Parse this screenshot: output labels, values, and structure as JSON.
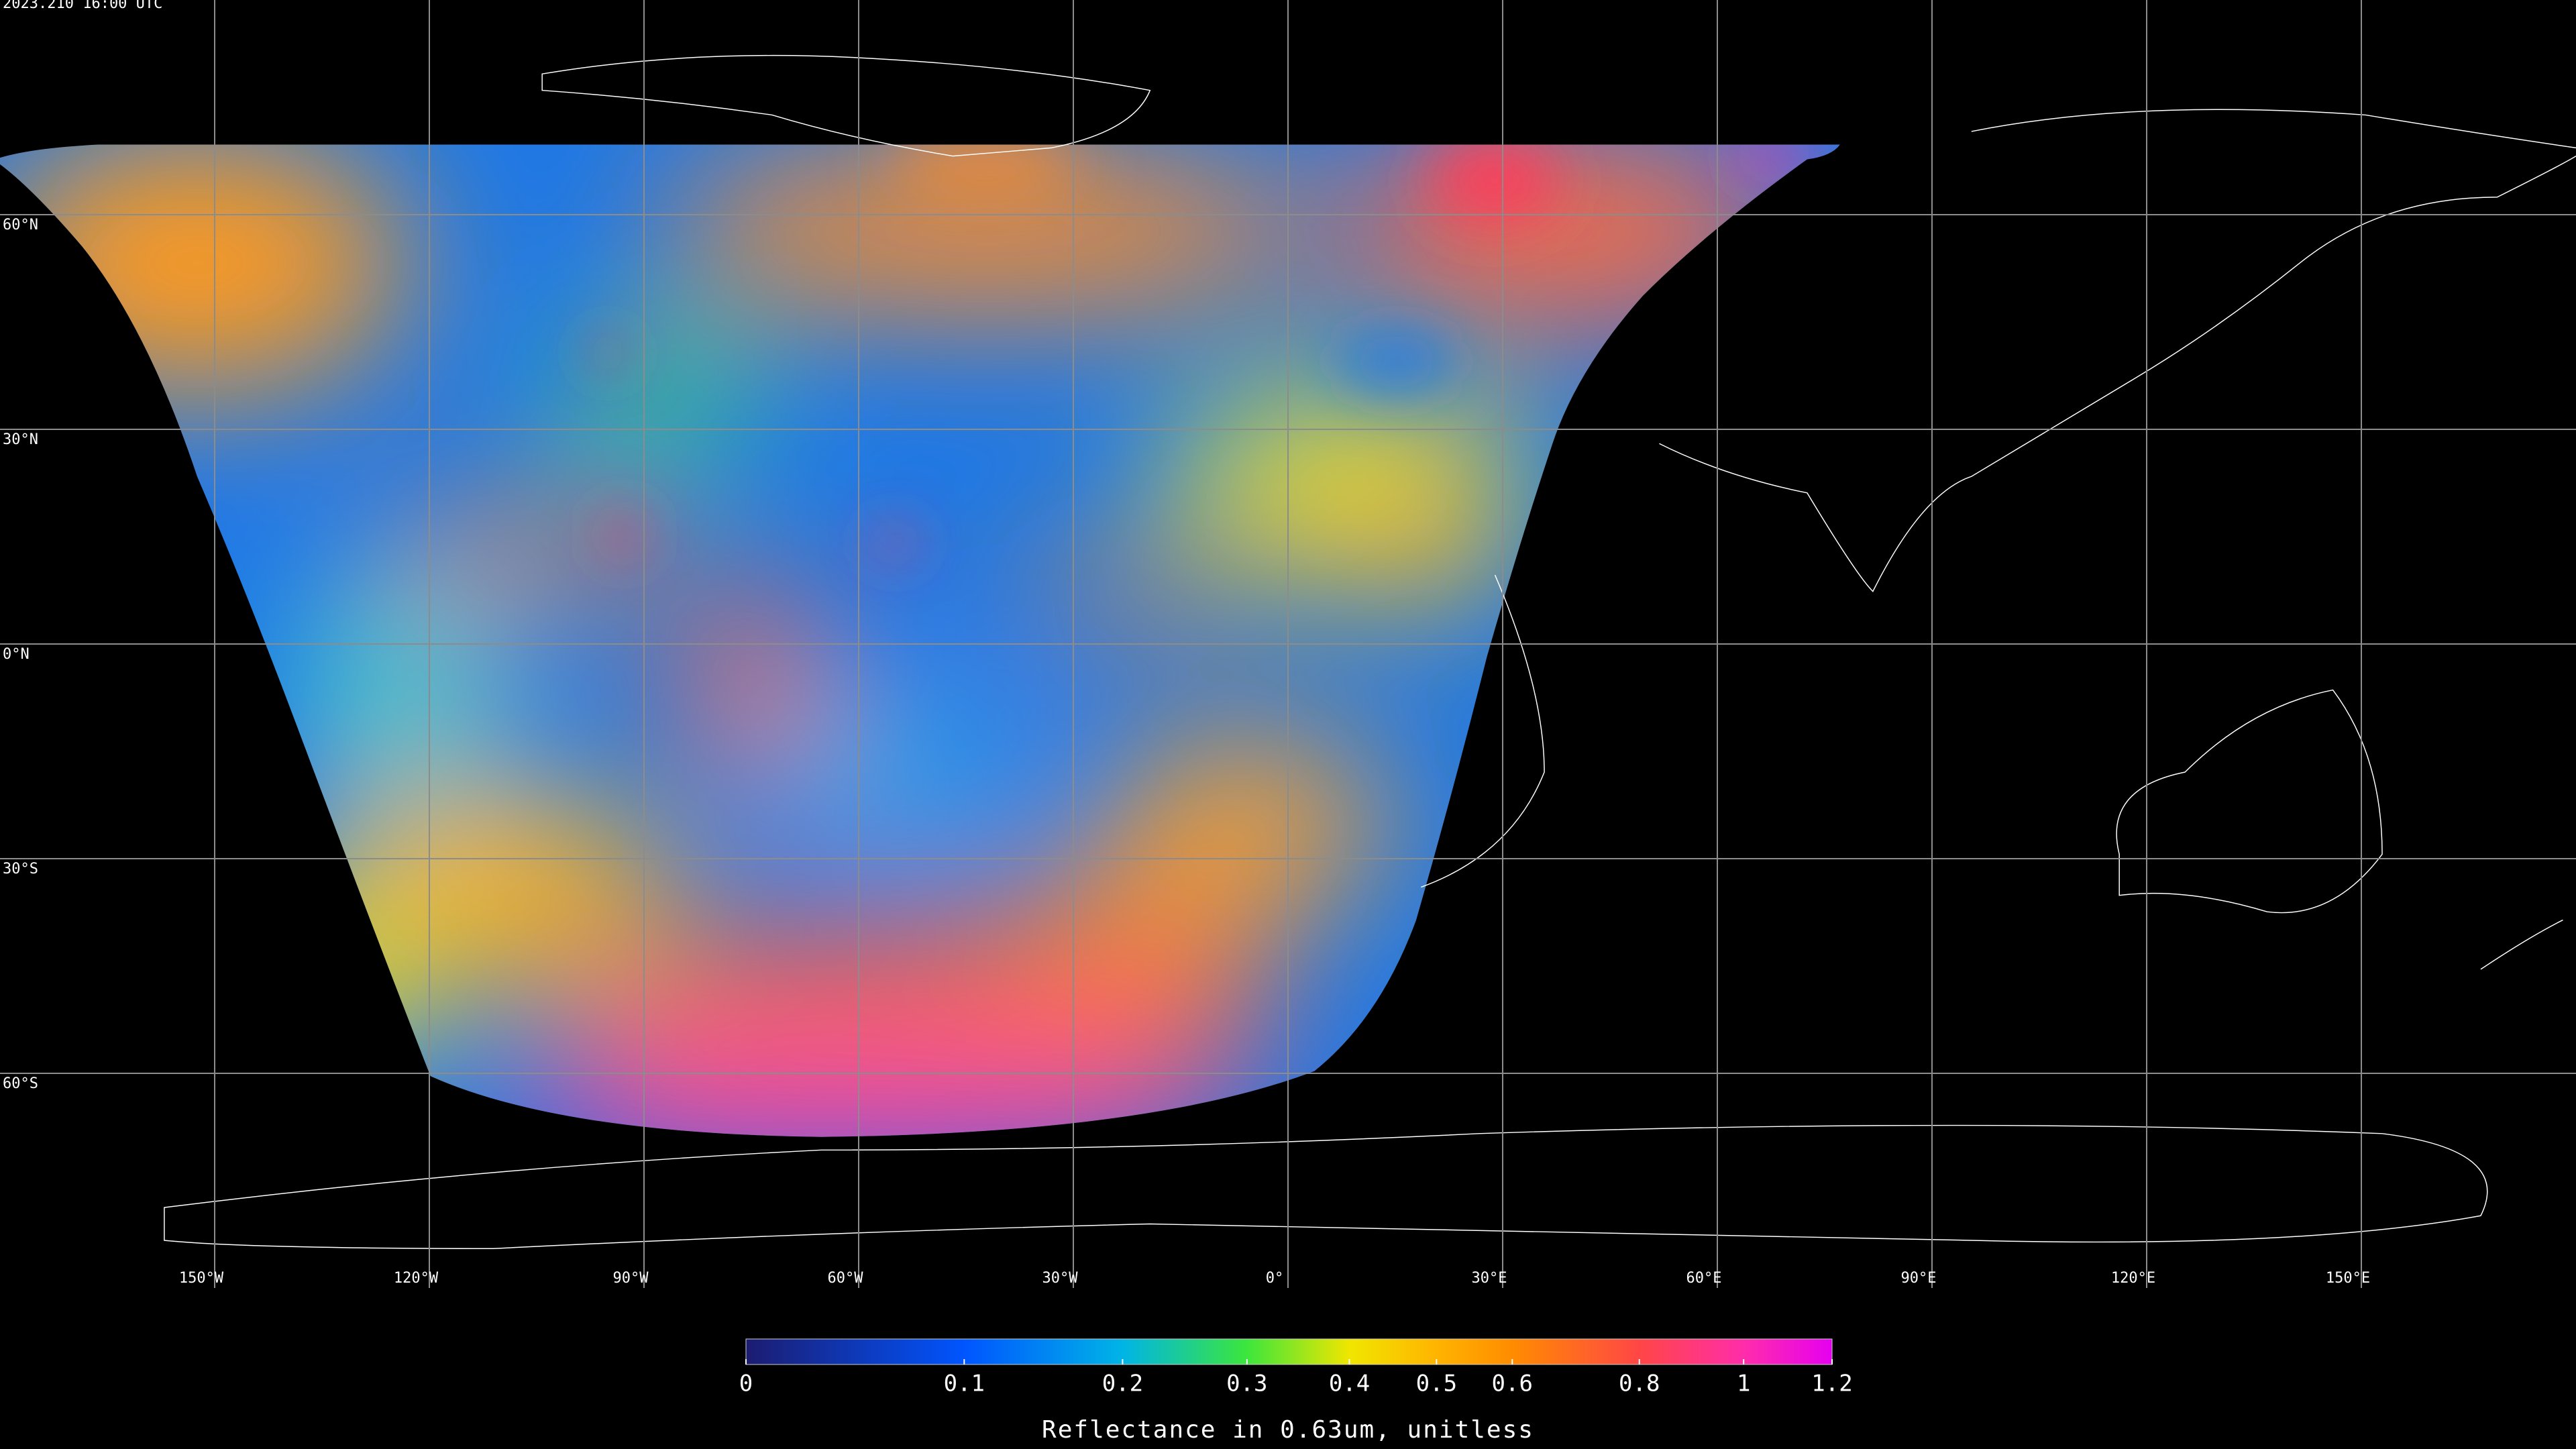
{
  "title": "2023.210 16:00 UTC",
  "map": {
    "xlim": [
      -180,
      180
    ],
    "ylim": [
      -90,
      90
    ],
    "xticks": [
      {
        "value": -150,
        "label": "150°W"
      },
      {
        "value": -120,
        "label": "120°W"
      },
      {
        "value": -90,
        "label": "90°W"
      },
      {
        "value": -60,
        "label": "60°W"
      },
      {
        "value": -30,
        "label": "30°W"
      },
      {
        "value": 0,
        "label": "0°"
      },
      {
        "value": 30,
        "label": "30°E"
      },
      {
        "value": 60,
        "label": "60°E"
      },
      {
        "value": 90,
        "label": "90°E"
      },
      {
        "value": 120,
        "label": "120°E"
      },
      {
        "value": 150,
        "label": "150°E"
      }
    ],
    "yticks": [
      {
        "value": 60,
        "label": "60°N"
      },
      {
        "value": 30,
        "label": "30°N"
      },
      {
        "value": 0,
        "label": "0°N"
      },
      {
        "value": -30,
        "label": "30°S"
      },
      {
        "value": -60,
        "label": "60°S"
      }
    ],
    "grid": true
  },
  "colorbar": {
    "label": "Reflectance in 0.63um, unitless",
    "lim": [
      0,
      1.2
    ],
    "ticks": [
      0,
      0.1,
      0.2,
      0.3,
      0.4,
      0.5,
      0.6,
      0.8,
      1,
      1.2
    ],
    "colors": [
      "#1c1c70",
      "#0055ff",
      "#00b4e6",
      "#3ce63c",
      "#f0e600",
      "#ffb400",
      "#ff8c00",
      "#ff4646",
      "#ff2daa",
      "#e600f0"
    ]
  }
}
